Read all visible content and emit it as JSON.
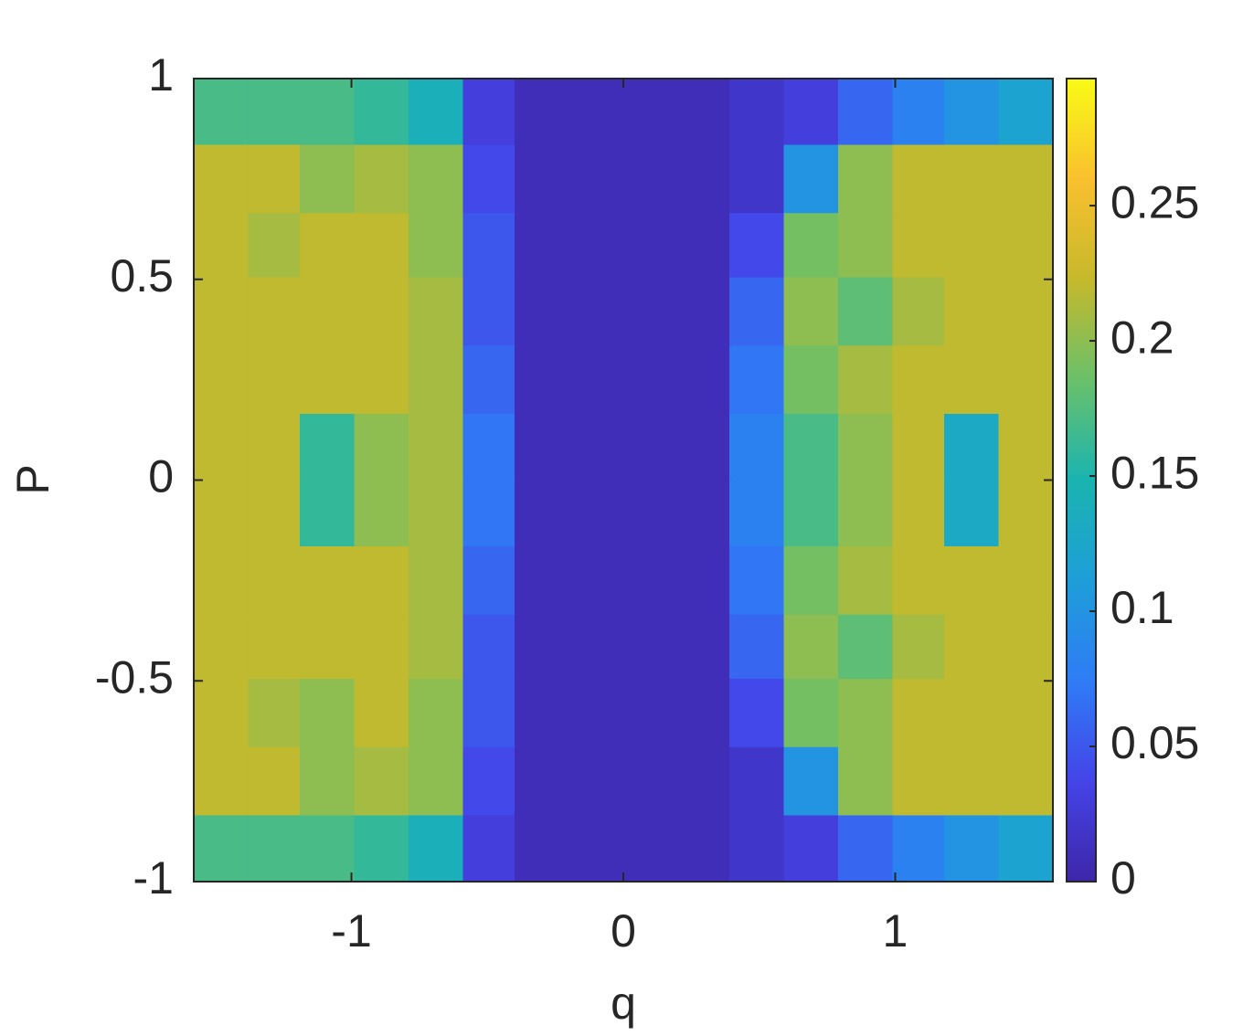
{
  "chart_data": {
    "type": "heatmap",
    "xlabel": "q",
    "ylabel": "P",
    "xlim": [
      -1.58,
      1.58
    ],
    "xticks": [
      -1,
      0,
      1
    ],
    "ylim": [
      -1,
      1
    ],
    "yticks": [
      -1,
      -0.5,
      0,
      0.5,
      1
    ],
    "clim": [
      0,
      0.297
    ],
    "cticks": [
      0,
      0.05,
      0.1,
      0.15,
      0.2,
      0.25
    ],
    "colormap": [
      "#3e26a8",
      "#4444e8",
      "#2f7cf6",
      "#1e9ed8",
      "#1ab4b0",
      "#6ac06a",
      "#c6b92b",
      "#f9c02f",
      "#f9fb15"
    ],
    "x": [
      -1.48,
      -1.28,
      -1.09,
      -0.89,
      -0.69,
      -0.49,
      -0.3,
      -0.1,
      0.1,
      0.3,
      0.49,
      0.69,
      0.89,
      1.09,
      1.28,
      1.48
    ],
    "y": [
      0.92,
      0.75,
      0.58,
      0.42,
      0.25,
      0.08,
      -0.08,
      -0.25,
      -0.42,
      -0.58,
      -0.75,
      -0.92
    ],
    "values": [
      [
        0.17,
        0.17,
        0.17,
        0.16,
        0.14,
        0.03,
        0.01,
        0.01,
        0.01,
        0.01,
        0.02,
        0.03,
        0.06,
        0.08,
        0.1,
        0.12
      ],
      [
        0.22,
        0.22,
        0.2,
        0.21,
        0.2,
        0.04,
        0.01,
        0.01,
        0.01,
        0.01,
        0.02,
        0.1,
        0.2,
        0.22,
        0.22,
        0.22
      ],
      [
        0.22,
        0.21,
        0.22,
        0.22,
        0.2,
        0.05,
        0.01,
        0.01,
        0.01,
        0.01,
        0.04,
        0.19,
        0.2,
        0.22,
        0.22,
        0.22
      ],
      [
        0.22,
        0.22,
        0.22,
        0.22,
        0.21,
        0.05,
        0.01,
        0.01,
        0.01,
        0.01,
        0.06,
        0.2,
        0.18,
        0.21,
        0.22,
        0.22
      ],
      [
        0.22,
        0.22,
        0.22,
        0.22,
        0.21,
        0.06,
        0.01,
        0.01,
        0.01,
        0.01,
        0.07,
        0.19,
        0.21,
        0.22,
        0.22,
        0.22
      ],
      [
        0.22,
        0.22,
        0.16,
        0.2,
        0.21,
        0.07,
        0.01,
        0.01,
        0.01,
        0.01,
        0.08,
        0.17,
        0.2,
        0.22,
        0.13,
        0.22
      ],
      [
        0.22,
        0.22,
        0.16,
        0.2,
        0.21,
        0.07,
        0.01,
        0.01,
        0.01,
        0.01,
        0.08,
        0.17,
        0.2,
        0.22,
        0.13,
        0.22
      ],
      [
        0.22,
        0.22,
        0.22,
        0.22,
        0.21,
        0.06,
        0.01,
        0.01,
        0.01,
        0.01,
        0.07,
        0.19,
        0.21,
        0.22,
        0.22,
        0.22
      ],
      [
        0.22,
        0.22,
        0.22,
        0.22,
        0.21,
        0.05,
        0.01,
        0.01,
        0.01,
        0.01,
        0.06,
        0.2,
        0.18,
        0.21,
        0.22,
        0.22
      ],
      [
        0.22,
        0.21,
        0.2,
        0.22,
        0.2,
        0.05,
        0.01,
        0.01,
        0.01,
        0.01,
        0.04,
        0.19,
        0.2,
        0.22,
        0.22,
        0.22
      ],
      [
        0.22,
        0.22,
        0.2,
        0.21,
        0.2,
        0.04,
        0.01,
        0.01,
        0.01,
        0.01,
        0.02,
        0.1,
        0.2,
        0.22,
        0.22,
        0.22
      ],
      [
        0.17,
        0.17,
        0.17,
        0.16,
        0.14,
        0.03,
        0.01,
        0.01,
        0.01,
        0.01,
        0.02,
        0.03,
        0.06,
        0.08,
        0.1,
        0.12
      ]
    ]
  }
}
